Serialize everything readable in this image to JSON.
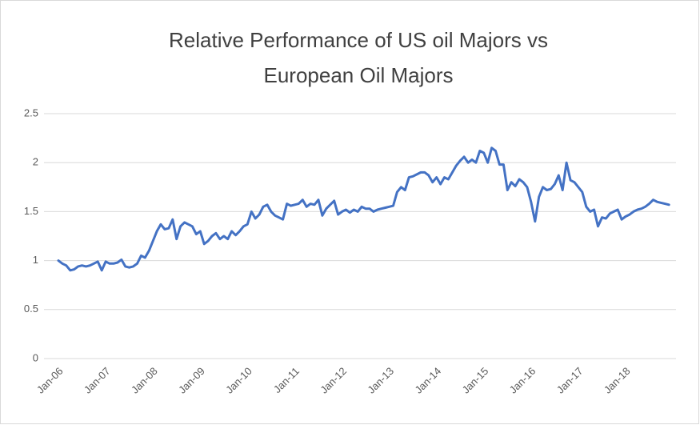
{
  "chart_data": {
    "type": "line",
    "title": [
      "Relative Performance of US oil Majors vs",
      "European Oil Majors"
    ],
    "categories": [
      "Jan-06",
      null,
      null,
      null,
      null,
      null,
      null,
      null,
      null,
      null,
      null,
      null,
      "Jan-07",
      null,
      null,
      null,
      null,
      null,
      null,
      null,
      null,
      null,
      null,
      null,
      "Jan-08",
      null,
      null,
      null,
      null,
      null,
      null,
      null,
      null,
      null,
      null,
      null,
      "Jan-09",
      null,
      null,
      null,
      null,
      null,
      null,
      null,
      null,
      null,
      null,
      null,
      "Jan-10",
      null,
      null,
      null,
      null,
      null,
      null,
      null,
      null,
      null,
      null,
      null,
      "Jan-11",
      null,
      null,
      null,
      null,
      null,
      null,
      null,
      null,
      null,
      null,
      null,
      "Jan-12",
      null,
      null,
      null,
      null,
      null,
      null,
      null,
      null,
      null,
      null,
      null,
      "Jan-13",
      null,
      null,
      null,
      null,
      null,
      null,
      null,
      null,
      null,
      null,
      null,
      "Jan-14",
      null,
      null,
      null,
      null,
      null,
      null,
      null,
      null,
      null,
      null,
      null,
      "Jan-15",
      null,
      null,
      null,
      null,
      null,
      null,
      null,
      null,
      null,
      null,
      null,
      "Jan-16",
      null,
      null,
      null,
      null,
      null,
      null,
      null,
      null,
      null,
      null,
      null,
      "Jan-17",
      null,
      null,
      null,
      null,
      null,
      null,
      null,
      null,
      null,
      null,
      null,
      "Jan-18",
      null,
      null,
      null,
      null,
      null,
      null,
      null,
      null,
      null,
      null,
      null
    ],
    "series": [
      {
        "color": "#4472c4",
        "values": [
          1.0,
          0.97,
          0.95,
          0.9,
          0.91,
          0.94,
          0.95,
          0.94,
          0.95,
          0.97,
          0.99,
          0.9,
          0.99,
          0.97,
          0.97,
          0.98,
          1.01,
          0.94,
          0.93,
          0.94,
          0.97,
          1.05,
          1.03,
          1.1,
          1.2,
          1.3,
          1.37,
          1.32,
          1.33,
          1.42,
          1.22,
          1.35,
          1.39,
          1.37,
          1.35,
          1.27,
          1.3,
          1.17,
          1.2,
          1.25,
          1.28,
          1.22,
          1.25,
          1.22,
          1.3,
          1.26,
          1.3,
          1.35,
          1.37,
          1.5,
          1.43,
          1.47,
          1.55,
          1.57,
          1.5,
          1.46,
          1.44,
          1.42,
          1.58,
          1.56,
          1.57,
          1.58,
          1.62,
          1.55,
          1.58,
          1.57,
          1.62,
          1.46,
          1.53,
          1.57,
          1.61,
          1.47,
          1.5,
          1.52,
          1.49,
          1.52,
          1.5,
          1.55,
          1.53,
          1.53,
          1.5,
          1.52,
          1.53,
          1.54,
          1.55,
          1.56,
          1.7,
          1.75,
          1.72,
          1.85,
          1.86,
          1.88,
          1.9,
          1.9,
          1.87,
          1.8,
          1.85,
          1.78,
          1.85,
          1.83,
          1.9,
          1.97,
          2.02,
          2.06,
          2.0,
          2.03,
          2.0,
          2.12,
          2.1,
          2.0,
          2.15,
          2.12,
          1.98,
          1.98,
          1.72,
          1.8,
          1.76,
          1.83,
          1.8,
          1.75,
          1.6,
          1.4,
          1.65,
          1.75,
          1.72,
          1.73,
          1.78,
          1.87,
          1.72,
          2.0,
          1.82,
          1.8,
          1.75,
          1.7,
          1.55,
          1.5,
          1.52,
          1.35,
          1.44,
          1.43,
          1.48,
          1.5,
          1.52,
          1.42,
          1.45,
          1.47,
          1.5,
          1.52,
          1.53,
          1.55,
          1.58,
          1.62,
          1.6,
          1.59,
          1.58,
          1.57
        ]
      }
    ],
    "ylim": [
      0,
      2.5
    ],
    "yticks": [
      0,
      0.5,
      1,
      1.5,
      2,
      2.5
    ],
    "grid": true
  }
}
